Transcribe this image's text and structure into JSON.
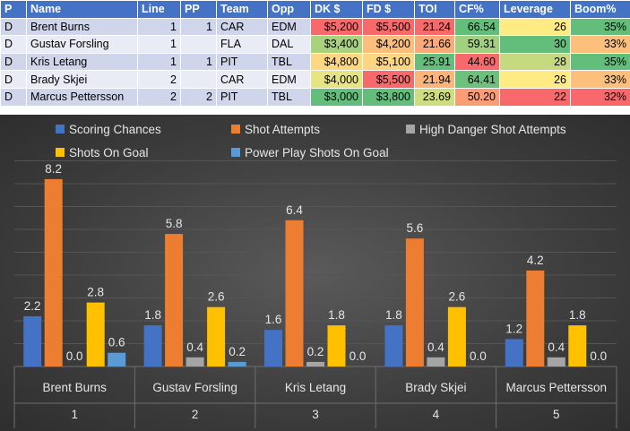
{
  "table": {
    "headers": [
      "P",
      "Name",
      "Line",
      "PP",
      "Team",
      "Opp",
      "DK $",
      "FD $",
      "TOI",
      "CF%",
      "Leverage",
      "Boom%"
    ],
    "rows": [
      [
        "D",
        "Brent Burns",
        "1",
        "1",
        "CAR",
        "EDM",
        "$5,200",
        "$5,500",
        "21.24",
        "66.54",
        "26",
        "35%"
      ],
      [
        "D",
        "Gustav Forsling",
        "1",
        "",
        "FLA",
        "DAL",
        "$3,400",
        "$4,200",
        "21.66",
        "59.31",
        "30",
        "33%"
      ],
      [
        "D",
        "Kris Letang",
        "1",
        "1",
        "PIT",
        "TBL",
        "$4,800",
        "$5,100",
        "25.91",
        "44.60",
        "28",
        "35%"
      ],
      [
        "D",
        "Brady Skjei",
        "2",
        "",
        "CAR",
        "EDM",
        "$4,000",
        "$5,500",
        "21.94",
        "64.41",
        "26",
        "33%"
      ],
      [
        "D",
        "Marcus Pettersson",
        "2",
        "2",
        "PIT",
        "TBL",
        "$3,000",
        "$3,800",
        "23.69",
        "50.20",
        "22",
        "32%"
      ]
    ],
    "cell_colors": [
      [
        "",
        "",
        "",
        "",
        "",
        "",
        "#f8696b",
        "#f8696b",
        "#f8696b",
        "#63be7b",
        "#ffeb84",
        "#63be7b"
      ],
      [
        "",
        "",
        "",
        "",
        "",
        "",
        "#a9d27f",
        "#fcbf7b",
        "#fbaa77",
        "#a2d07f",
        "#63be7b",
        "#fdc07c"
      ],
      [
        "",
        "",
        "",
        "",
        "",
        "",
        "#fed881",
        "#fed580",
        "#63be7b",
        "#f8696b",
        "#c5d980",
        "#63be7b"
      ],
      [
        "",
        "",
        "",
        "",
        "",
        "",
        "#e7e482",
        "#f8696b",
        "#fcb479",
        "#6ec17c",
        "#ffeb84",
        "#fdc07c"
      ],
      [
        "",
        "",
        "",
        "",
        "",
        "",
        "#63be7b",
        "#63be7b",
        "#cfdd81",
        "#fa9d75",
        "#f8696b",
        "#f8696b"
      ]
    ]
  },
  "chart_data": {
    "type": "bar",
    "categories": [
      {
        "name": "Brent Burns",
        "index": "1"
      },
      {
        "name": "Gustav Forsling",
        "index": "2"
      },
      {
        "name": "Kris Letang",
        "index": "3"
      },
      {
        "name": "Brady Skjei",
        "index": "4"
      },
      {
        "name": "Marcus Pettersson",
        "index": "5"
      }
    ],
    "series": [
      {
        "name": "Scoring Chances",
        "color": "#4472c4",
        "values": [
          2.2,
          1.8,
          1.6,
          1.8,
          1.2
        ]
      },
      {
        "name": "Shot Attempts",
        "color": "#ed7d31",
        "values": [
          8.2,
          5.8,
          6.4,
          5.6,
          4.2
        ]
      },
      {
        "name": "High Danger Shot Attempts",
        "color": "#a5a5a5",
        "values": [
          0.0,
          0.4,
          0.2,
          0.4,
          0.4
        ]
      },
      {
        "name": "Shots On Goal",
        "color": "#ffc000",
        "values": [
          2.8,
          2.6,
          1.8,
          2.6,
          1.8
        ]
      },
      {
        "name": "Power Play Shots On Goal",
        "color": "#5b9bd5",
        "values": [
          0.6,
          0.2,
          0.0,
          0.0,
          0.0
        ]
      }
    ],
    "ylim": [
      0,
      9
    ],
    "grid": true,
    "legend": "top"
  }
}
